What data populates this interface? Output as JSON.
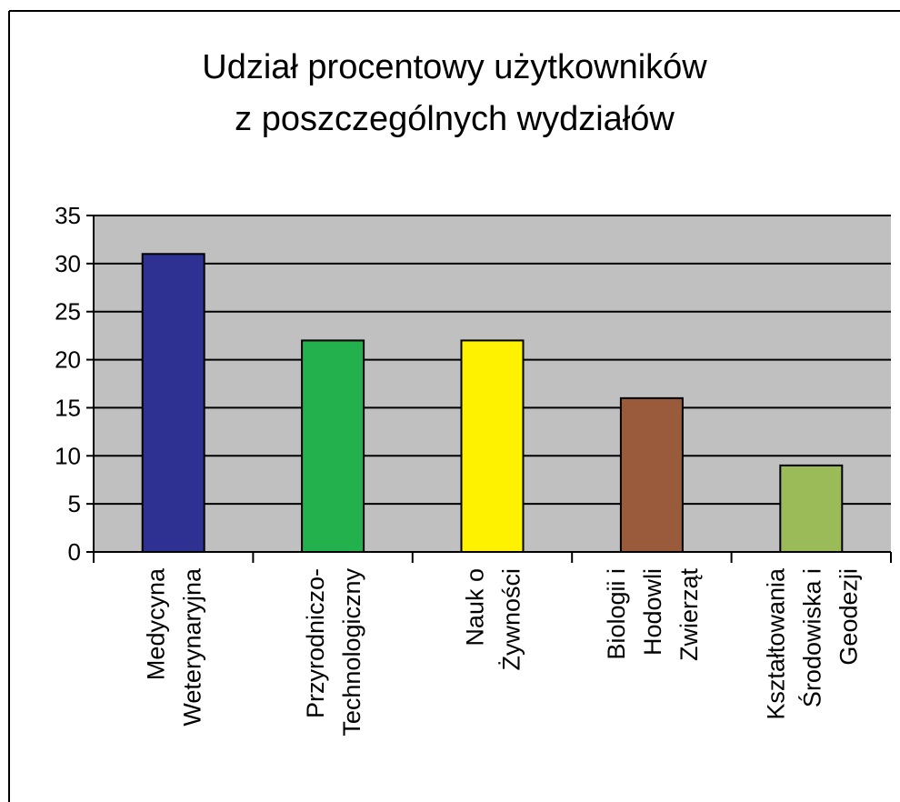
{
  "chart_data": {
    "type": "bar",
    "title": [
      "Udział procentowy użytkowników",
      "z poszczególnych wydziałów"
    ],
    "categories": [
      [
        "Medycyna",
        "Weterynaryjna"
      ],
      [
        "Przyrodniczo-",
        "Technologiczny"
      ],
      [
        "Nauk o",
        "Żywności"
      ],
      [
        "Biologii i",
        "Hodowli",
        "Zwierząt"
      ],
      [
        "Kształtowania",
        "Środowiska i",
        "Geodezji"
      ]
    ],
    "values": [
      31,
      22,
      22,
      16,
      9
    ],
    "colors": [
      "#2e3192",
      "#22b14c",
      "#fff200",
      "#9a5b3c",
      "#9bbb59"
    ],
    "ylim": [
      0,
      35
    ],
    "yticks": [
      0,
      5,
      10,
      15,
      20,
      25,
      30,
      35
    ],
    "grid": true
  }
}
